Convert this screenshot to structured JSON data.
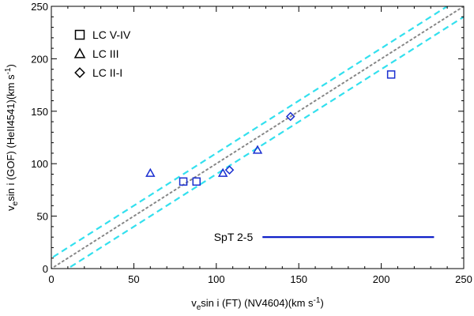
{
  "chart_data": {
    "type": "scatter",
    "title": "",
    "xlabel": {
      "main": "v",
      "sub": "e",
      "rest": "sin i (FT) (NV4604)(km s",
      "sup": "-1",
      "end": ")"
    },
    "ylabel": {
      "main": "v",
      "sub": "e",
      "rest": "sin i (GOF) (HeII4541)(km s",
      "sup": "-1",
      "end": ")"
    },
    "xlim": [
      0,
      250
    ],
    "ylim": [
      0,
      250
    ],
    "xticks": [
      0,
      50,
      100,
      150,
      200,
      250
    ],
    "yticks": [
      0,
      50,
      100,
      150,
      200,
      250
    ],
    "grid": false,
    "legend_position": "top-left",
    "series": [
      {
        "name": "LC V-IV",
        "marker": "square",
        "x": [
          80,
          88,
          206
        ],
        "y": [
          83,
          83,
          185
        ]
      },
      {
        "name": "LC III",
        "marker": "triangle",
        "x": [
          60,
          104,
          125
        ],
        "y": [
          91,
          91,
          113
        ]
      },
      {
        "name": "LC II-I",
        "marker": "diamond",
        "x": [
          108,
          145
        ],
        "y": [
          94,
          145
        ]
      }
    ],
    "reference_lines": [
      {
        "style": "dotted",
        "color": "#888888",
        "offset": 0
      },
      {
        "style": "dashed",
        "color": "#33e0ee",
        "offset": 10
      },
      {
        "style": "dashed",
        "color": "#33e0ee",
        "offset": -10
      }
    ],
    "annotation": {
      "text": "SpT 2-5",
      "color": "#1020c8",
      "line_x": [
        128,
        232
      ],
      "y": 30
    },
    "colors": {
      "marker": "#1a2fd0",
      "axis": "#000000"
    }
  }
}
